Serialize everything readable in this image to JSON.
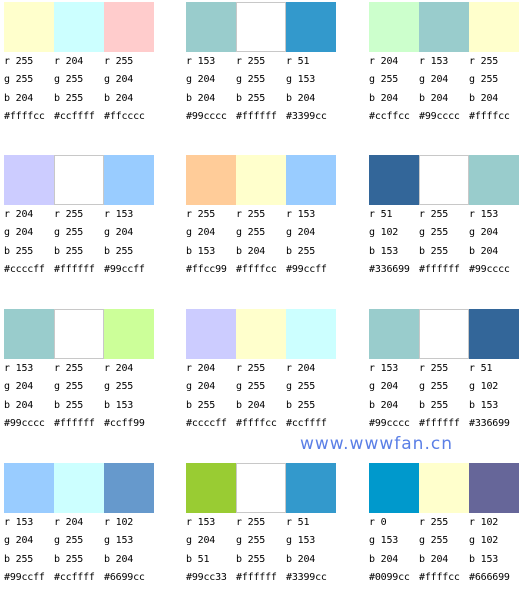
{
  "palettes": [
    {
      "swatches": [
        {
          "color": "#ffffcc",
          "r": "r 255",
          "g": "g 255",
          "b": "b 204",
          "hex": "#ffffcc"
        },
        {
          "color": "#ccffff",
          "r": "r 204",
          "g": "g 255",
          "b": "b 255",
          "hex": "#ccffff"
        },
        {
          "color": "#ffcccc",
          "r": "r 255",
          "g": "g 204",
          "b": "b 204",
          "hex": "#ffcccc"
        }
      ]
    },
    {
      "swatches": [
        {
          "color": "#99cccc",
          "r": "r 153",
          "g": "g 204",
          "b": "b 204",
          "hex": "#99cccc"
        },
        {
          "color": "#ffffff",
          "r": "r 255",
          "g": "g 255",
          "b": "b 255",
          "hex": "#ffffff"
        },
        {
          "color": "#3399cc",
          "r": "r 51",
          "g": "g 153",
          "b": "b 204",
          "hex": "#3399cc"
        }
      ]
    },
    {
      "swatches": [
        {
          "color": "#ccffcc",
          "r": "r 204",
          "g": "g 255",
          "b": "b 204",
          "hex": "#ccffcc"
        },
        {
          "color": "#99cccc",
          "r": "r 153",
          "g": "g 204",
          "b": "b 204",
          "hex": "#99cccc"
        },
        {
          "color": "#ffffcc",
          "r": "r 255",
          "g": "g 255",
          "b": "b 204",
          "hex": "#ffffcc"
        }
      ]
    },
    {
      "swatches": [
        {
          "color": "#ccccff",
          "r": "r 204",
          "g": "g 204",
          "b": "b 255",
          "hex": "#ccccff"
        },
        {
          "color": "#ffffff",
          "r": "r 255",
          "g": "g 255",
          "b": "b 255",
          "hex": "#ffffff"
        },
        {
          "color": "#99ccff",
          "r": "r 153",
          "g": "g 204",
          "b": "b 255",
          "hex": "#99ccff"
        }
      ]
    },
    {
      "swatches": [
        {
          "color": "#ffcc99",
          "r": "r 255",
          "g": "g 204",
          "b": "b 153",
          "hex": "#ffcc99"
        },
        {
          "color": "#ffffcc",
          "r": "r 255",
          "g": "g 255",
          "b": "b 204",
          "hex": "#ffffcc"
        },
        {
          "color": "#99ccff",
          "r": "r 153",
          "g": "g 204",
          "b": "b 255",
          "hex": "#99ccff"
        }
      ]
    },
    {
      "swatches": [
        {
          "color": "#336699",
          "r": "r 51",
          "g": "g 102",
          "b": "b 153",
          "hex": "#336699"
        },
        {
          "color": "#ffffff",
          "r": "r 255",
          "g": "g 255",
          "b": "b 255",
          "hex": "#ffffff"
        },
        {
          "color": "#99cccc",
          "r": "r 153",
          "g": "g 204",
          "b": "b 204",
          "hex": "#99cccc"
        }
      ]
    },
    {
      "swatches": [
        {
          "color": "#99cccc",
          "r": "r 153",
          "g": "g 204",
          "b": "b 204",
          "hex": "#99cccc"
        },
        {
          "color": "#ffffff",
          "r": "r 255",
          "g": "g 255",
          "b": "b 255",
          "hex": "#ffffff"
        },
        {
          "color": "#ccff99",
          "r": "r 204",
          "g": "g 255",
          "b": "b 153",
          "hex": "#ccff99"
        }
      ]
    },
    {
      "swatches": [
        {
          "color": "#ccccff",
          "r": "r 204",
          "g": "g 204",
          "b": "b 255",
          "hex": "#ccccff"
        },
        {
          "color": "#ffffcc",
          "r": "r 255",
          "g": "g 255",
          "b": "b 204",
          "hex": "#ffffcc"
        },
        {
          "color": "#ccffff",
          "r": "r 204",
          "g": "g 255",
          "b": "b 255",
          "hex": "#ccffff"
        }
      ]
    },
    {
      "swatches": [
        {
          "color": "#99cccc",
          "r": "r 153",
          "g": "g 204",
          "b": "b 204",
          "hex": "#99cccc"
        },
        {
          "color": "#ffffff",
          "r": "r 255",
          "g": "g 255",
          "b": "b 255",
          "hex": "#ffffff"
        },
        {
          "color": "#336699",
          "r": "r 51",
          "g": "g 102",
          "b": "b 153",
          "hex": "#336699"
        }
      ]
    },
    {
      "swatches": [
        {
          "color": "#99ccff",
          "r": "r 153",
          "g": "g 204",
          "b": "b 255",
          "hex": "#99ccff"
        },
        {
          "color": "#ccffff",
          "r": "r 204",
          "g": "g 255",
          "b": "b 255",
          "hex": "#ccffff"
        },
        {
          "color": "#6699cc",
          "r": "r 102",
          "g": "g 153",
          "b": "b 204",
          "hex": "#6699cc"
        }
      ]
    },
    {
      "swatches": [
        {
          "color": "#99cc33",
          "r": "r 153",
          "g": "g 204",
          "b": "b 51",
          "hex": "#99cc33"
        },
        {
          "color": "#ffffff",
          "r": "r 255",
          "g": "g 255",
          "b": "b 255",
          "hex": "#ffffff"
        },
        {
          "color": "#3399cc",
          "r": "r 51",
          "g": "g 153",
          "b": "b 204",
          "hex": "#3399cc"
        }
      ]
    },
    {
      "swatches": [
        {
          "color": "#0099cc",
          "r": "r 0",
          "g": "g 153",
          "b": "b 204",
          "hex": "#0099cc"
        },
        {
          "color": "#ffffcc",
          "r": "r 255",
          "g": "g 255",
          "b": "b 204",
          "hex": "#ffffcc"
        },
        {
          "color": "#666699",
          "r": "r 102",
          "g": "g 102",
          "b": "b 153",
          "hex": "#666699"
        }
      ]
    }
  ],
  "watermark": {
    "text": "www.wwwfan.cn",
    "color": "#5b7fe6"
  }
}
